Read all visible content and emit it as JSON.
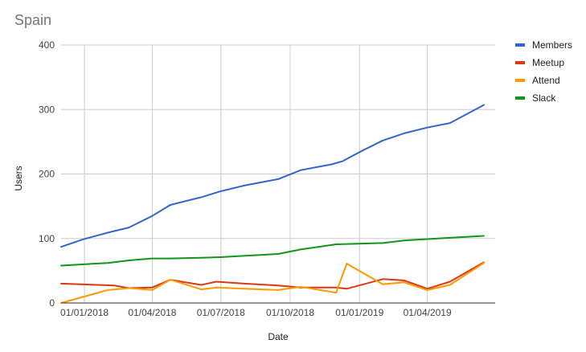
{
  "chart_data": {
    "type": "line",
    "title": "Spain",
    "xlabel": "Date",
    "ylabel": "Users",
    "ylim": [
      0,
      400
    ],
    "yticks": [
      0,
      100,
      200,
      300,
      400
    ],
    "xlim": [
      "2017-12-01",
      "2019-06-30"
    ],
    "xticks": [
      "01/01/2018",
      "01/04/2018",
      "01/07/2018",
      "01/10/2018",
      "01/01/2019",
      "01/04/2019"
    ],
    "grid": true,
    "legend_position": "right",
    "series": [
      {
        "name": "Members",
        "color": "#3366cc",
        "points": [
          [
            "2017-12-01",
            87
          ],
          [
            "2017-12-31",
            99
          ],
          [
            "2018-02-01",
            109
          ],
          [
            "2018-03-01",
            117
          ],
          [
            "2018-04-01",
            135
          ],
          [
            "2018-04-25",
            152
          ],
          [
            "2018-06-05",
            164
          ],
          [
            "2018-06-30",
            173
          ],
          [
            "2018-08-01",
            182
          ],
          [
            "2018-09-15",
            192
          ],
          [
            "2018-10-15",
            206
          ],
          [
            "2018-11-25",
            215
          ],
          [
            "2018-12-10",
            220
          ],
          [
            "2019-01-01",
            234
          ],
          [
            "2019-02-01",
            252
          ],
          [
            "2019-03-01",
            263
          ],
          [
            "2019-04-01",
            272
          ],
          [
            "2019-05-01",
            279
          ],
          [
            "2019-06-15",
            307
          ]
        ]
      },
      {
        "name": "Meetup",
        "color": "#dc3912",
        "points": [
          [
            "2017-12-01",
            30
          ],
          [
            "2018-02-10",
            27
          ],
          [
            "2018-03-01",
            23
          ],
          [
            "2018-04-01",
            24
          ],
          [
            "2018-04-25",
            36
          ],
          [
            "2018-06-05",
            28
          ],
          [
            "2018-06-25",
            33
          ],
          [
            "2018-08-01",
            30
          ],
          [
            "2018-09-15",
            27
          ],
          [
            "2018-10-15",
            24
          ],
          [
            "2018-12-01",
            24
          ],
          [
            "2018-12-15",
            22
          ],
          [
            "2019-02-01",
            37
          ],
          [
            "2019-03-01",
            35
          ],
          [
            "2019-04-01",
            22
          ],
          [
            "2019-05-01",
            33
          ],
          [
            "2019-06-15",
            63
          ]
        ]
      },
      {
        "name": "Attend",
        "color": "#ff9900",
        "points": [
          [
            "2017-12-01",
            0
          ],
          [
            "2018-02-01",
            20
          ],
          [
            "2018-03-01",
            23
          ],
          [
            "2018-04-01",
            20
          ],
          [
            "2018-04-25",
            36
          ],
          [
            "2018-06-05",
            21
          ],
          [
            "2018-06-25",
            24
          ],
          [
            "2018-08-01",
            22
          ],
          [
            "2018-09-15",
            20
          ],
          [
            "2018-10-15",
            25
          ],
          [
            "2018-12-01",
            16
          ],
          [
            "2018-12-15",
            61
          ],
          [
            "2019-02-01",
            29
          ],
          [
            "2019-03-01",
            32
          ],
          [
            "2019-04-01",
            20
          ],
          [
            "2019-05-01",
            28
          ],
          [
            "2019-06-15",
            62
          ]
        ]
      },
      {
        "name": "Slack",
        "color": "#109618",
        "points": [
          [
            "2017-12-01",
            58
          ],
          [
            "2018-02-01",
            62
          ],
          [
            "2018-03-01",
            66
          ],
          [
            "2018-04-01",
            69
          ],
          [
            "2018-04-25",
            69
          ],
          [
            "2018-06-05",
            70
          ],
          [
            "2018-06-30",
            71
          ],
          [
            "2018-09-15",
            76
          ],
          [
            "2018-10-15",
            83
          ],
          [
            "2018-12-01",
            91
          ],
          [
            "2019-02-01",
            93
          ],
          [
            "2019-03-01",
            97
          ],
          [
            "2019-05-01",
            101
          ],
          [
            "2019-06-15",
            104
          ]
        ]
      }
    ]
  }
}
